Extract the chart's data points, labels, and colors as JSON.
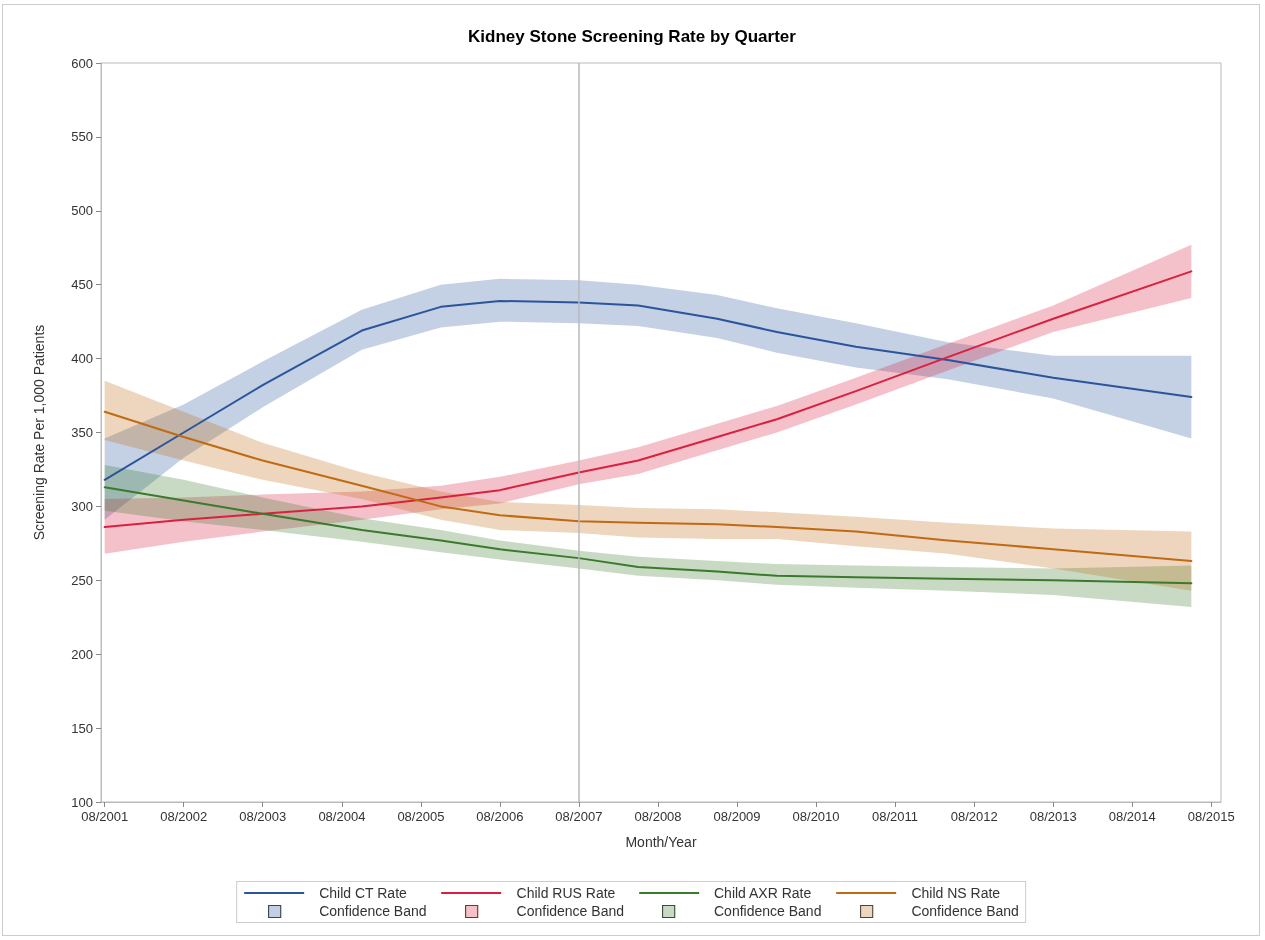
{
  "chart_data": {
    "type": "line",
    "title": "Kidney Stone Screening Rate by Quarter",
    "xlabel": "Month/Year",
    "ylabel": "Screening Rate Per 1,000 Patients",
    "x": [
      "2001-08",
      "2002-08",
      "2003-08",
      "2004-11",
      "2005-11",
      "2006-08",
      "2007-08",
      "2008-05",
      "2009-05",
      "2010-02",
      "2011-02",
      "2012-04",
      "2013-08",
      "2015-05"
    ],
    "series": [
      {
        "name": "Child CT Rate",
        "color": "#2a559c",
        "values": [
          318,
          350,
          382,
          419,
          435,
          439,
          438,
          436,
          427,
          418,
          408,
          399,
          387,
          374
        ],
        "upper": [
          346,
          369,
          398,
          433,
          450,
          454,
          453,
          450,
          443,
          434,
          424,
          411,
          402,
          402
        ],
        "lower": [
          291,
          333,
          367,
          406,
          421,
          425,
          424,
          422,
          414,
          404,
          394,
          386,
          373,
          346
        ]
      },
      {
        "name": "Child RUS Rate",
        "color": "#d9213f",
        "values": [
          286,
          291,
          295,
          300,
          306,
          311,
          323,
          331,
          347,
          359,
          378,
          401,
          427,
          459
        ],
        "upper": [
          305,
          306,
          308,
          310,
          314,
          320,
          331,
          340,
          356,
          368,
          387,
          410,
          436,
          477
        ],
        "lower": [
          268,
          276,
          283,
          291,
          298,
          302,
          315,
          322,
          338,
          350,
          369,
          392,
          418,
          441
        ]
      },
      {
        "name": "Child AXR Rate",
        "color": "#3b7a2c",
        "values": [
          313,
          304,
          295,
          284,
          277,
          271,
          265,
          259,
          256,
          253,
          252,
          251,
          250,
          248
        ],
        "upper": [
          328,
          318,
          306,
          292,
          284,
          277,
          270,
          266,
          263,
          261,
          260,
          259,
          258,
          260
        ],
        "lower": [
          297,
          290,
          284,
          276,
          269,
          264,
          258,
          253,
          250,
          247,
          245,
          243,
          240,
          232
        ]
      },
      {
        "name": "Child NS Rate",
        "color": "#c06a12",
        "values": [
          364,
          347,
          331,
          314,
          300,
          294,
          290,
          289,
          288,
          286,
          283,
          277,
          271,
          263
        ],
        "upper": [
          385,
          364,
          343,
          323,
          310,
          303,
          301,
          299,
          298,
          296,
          293,
          289,
          285,
          283
        ],
        "lower": [
          345,
          331,
          318,
          305,
          291,
          284,
          282,
          279,
          278,
          278,
          273,
          268,
          258,
          243
        ]
      }
    ],
    "annotations": [
      "Confidence Band",
      "Confidence Band",
      "Confidence Band",
      "Confidence Band"
    ],
    "xlim": [
      "2001-07-15",
      "2015-09-15"
    ],
    "xticks": [
      {
        "value": "2001-08",
        "label": "08/2001"
      },
      {
        "value": "2002-08",
        "label": "08/2002"
      },
      {
        "value": "2003-08",
        "label": "08/2003"
      },
      {
        "value": "2004-08",
        "label": "08/2004"
      },
      {
        "value": "2005-08",
        "label": "08/2005"
      },
      {
        "value": "2006-08",
        "label": "08/2006"
      },
      {
        "value": "2007-08",
        "label": "08/2007"
      },
      {
        "value": "2008-08",
        "label": "08/2008"
      },
      {
        "value": "2009-08",
        "label": "08/2009"
      },
      {
        "value": "2010-08",
        "label": "08/2010"
      },
      {
        "value": "2011-08",
        "label": "08/2011"
      },
      {
        "value": "2012-08",
        "label": "08/2012"
      },
      {
        "value": "2013-08",
        "label": "08/2013"
      },
      {
        "value": "2014-08",
        "label": "08/2014"
      },
      {
        "value": "2015-08",
        "label": "08/2015"
      }
    ],
    "ylim": [
      100,
      600
    ],
    "yticks": [
      100,
      150,
      200,
      250,
      300,
      350,
      400,
      450,
      500,
      550,
      600
    ],
    "ref_lines": [
      {
        "axis": "x",
        "value": "2007-08",
        "color": "#b8b8b8"
      }
    ],
    "grid": false,
    "legend": "bottom",
    "marker": "none",
    "line_style": "solid"
  }
}
